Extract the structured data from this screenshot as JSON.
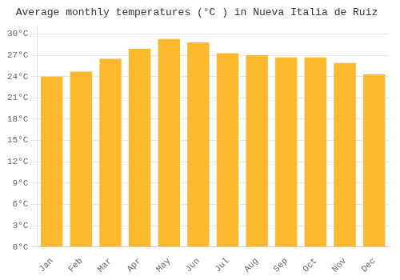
{
  "chart_data": {
    "type": "bar",
    "title": "Average monthly temperatures (°C ) in Nueva Italia de Ruiz",
    "categories": [
      "Jan",
      "Feb",
      "Mar",
      "Apr",
      "May",
      "Jun",
      "Jul",
      "Aug",
      "Sep",
      "Oct",
      "Nov",
      "Dec"
    ],
    "values": [
      24.0,
      24.7,
      26.5,
      27.9,
      29.3,
      28.8,
      27.3,
      27.0,
      26.7,
      26.7,
      25.9,
      24.3
    ],
    "color": "#FDB92E",
    "ylim": [
      0,
      31
    ],
    "yticks": [
      {
        "value": 0,
        "label": "0°C"
      },
      {
        "value": 3,
        "label": "3°C"
      },
      {
        "value": 6,
        "label": "6°C"
      },
      {
        "value": 9,
        "label": "9°C"
      },
      {
        "value": 12,
        "label": "12°C"
      },
      {
        "value": 15,
        "label": "15°C"
      },
      {
        "value": 18,
        "label": "18°C"
      },
      {
        "value": 21,
        "label": "21°C"
      },
      {
        "value": 24,
        "label": "24°C"
      },
      {
        "value": 27,
        "label": "27°C"
      },
      {
        "value": 30,
        "label": "30°C"
      }
    ],
    "grid": true
  }
}
